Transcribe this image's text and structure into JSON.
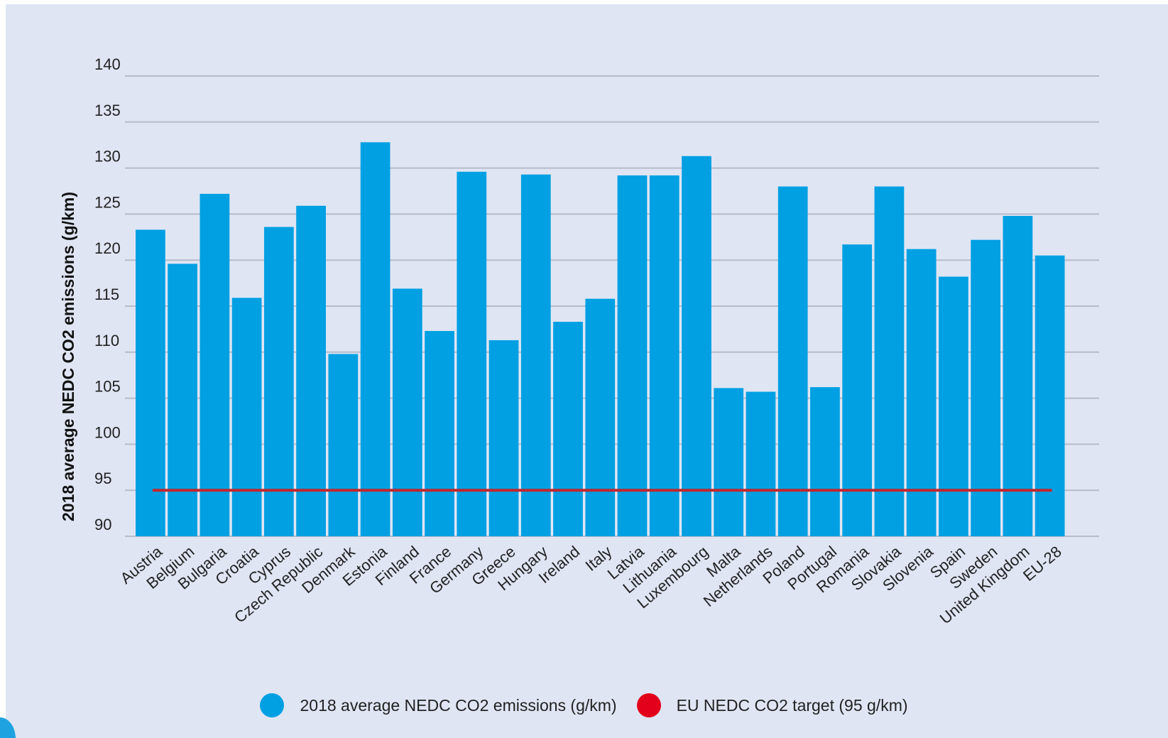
{
  "colors": {
    "background": "#dfe5f3",
    "bar": "#00a0e3",
    "target_line": "#c1272d",
    "target_legend_dot": "#e3001b",
    "grid": "#b6bccb"
  },
  "chart_data": {
    "type": "bar",
    "ylabel": "2018 average NEDC CO2 emissions (g/km)",
    "xlabel": "",
    "ylim": [
      90,
      140
    ],
    "yticks": [
      90,
      95,
      100,
      105,
      110,
      115,
      120,
      125,
      130,
      135,
      140
    ],
    "grid": true,
    "legend_position": "bottom",
    "categories": [
      "Austria",
      "Belgium",
      "Bulgaria",
      "Croatia",
      "Cyprus",
      "Czech Republic",
      "Denmark",
      "Estonia",
      "Finland",
      "France",
      "Germany",
      "Greece",
      "Hungary",
      "Ireland",
      "Italy",
      "Latvia",
      "Lithuania",
      "Luxembourg",
      "Malta",
      "Netherlands",
      "Poland",
      "Portugal",
      "Romania",
      "Slovakia",
      "Slovenia",
      "Spain",
      "Sweden",
      "United Kingdom",
      "EU-28"
    ],
    "series": [
      {
        "name": "2018 average NEDC CO2 emissions (g/km)",
        "type": "bar",
        "values": [
          123.3,
          119.6,
          127.2,
          115.9,
          123.6,
          125.9,
          109.8,
          132.8,
          116.9,
          112.3,
          129.6,
          111.3,
          129.3,
          113.3,
          115.8,
          129.2,
          129.2,
          131.3,
          106.1,
          105.7,
          128.0,
          106.2,
          121.7,
          128.0,
          121.2,
          118.2,
          122.2,
          124.8,
          120.5
        ]
      },
      {
        "name": "EU NEDC CO2 target (95 g/km)",
        "type": "line",
        "value": 95
      }
    ]
  },
  "legend": {
    "items": [
      {
        "label": "2018 average NEDC CO2 emissions (g/km)"
      },
      {
        "label": "EU NEDC CO2 target (95 g/km)"
      }
    ]
  }
}
